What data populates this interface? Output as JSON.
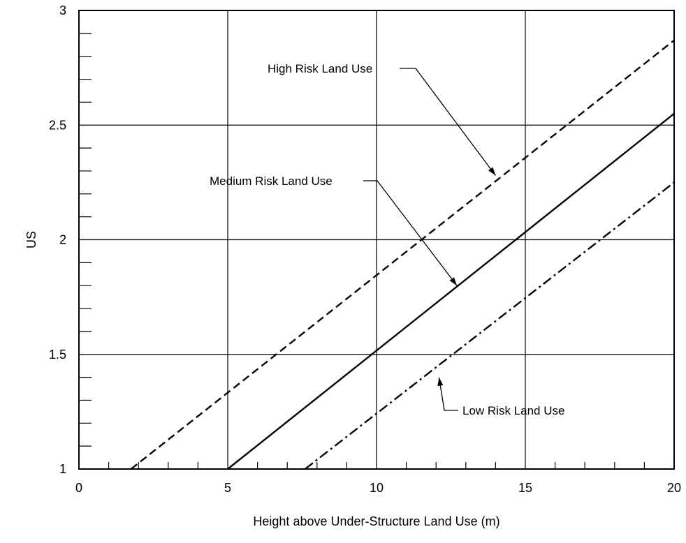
{
  "chart_data": {
    "type": "line",
    "xlabel": "Height above Under-Structure Land Use (m)",
    "ylabel": "US",
    "xlim": [
      0,
      20
    ],
    "ylim": [
      1,
      3
    ],
    "x_ticks": [
      0,
      5,
      10,
      15,
      20
    ],
    "y_ticks": [
      1,
      1.5,
      2,
      2.5,
      3
    ],
    "x_tick_labels": [
      "0",
      "5",
      "10",
      "15",
      "20"
    ],
    "y_tick_labels": [
      "1",
      "1.5",
      "2",
      "2.5",
      "3"
    ],
    "x_minor_step": 1,
    "y_minor_step": 0.1,
    "grid": true,
    "series": [
      {
        "name": "High Risk Land Use",
        "style": "dashed",
        "x": [
          1.75,
          20
        ],
        "y": [
          1.0,
          2.87
        ]
      },
      {
        "name": "Medium Risk Land Use",
        "style": "solid",
        "x": [
          5,
          20
        ],
        "y": [
          1.0,
          2.55
        ]
      },
      {
        "name": "Low Risk Land Use",
        "style": "dashdot",
        "x": [
          7.6,
          20
        ],
        "y": [
          1.0,
          2.25
        ]
      }
    ],
    "annotations": [
      {
        "text": "High Risk Land Use",
        "series": "High Risk Land Use",
        "target": [
          14.0,
          2.28
        ]
      },
      {
        "text": "Medium Risk Land Use",
        "series": "Medium Risk Land Use",
        "target": [
          12.7,
          1.8
        ]
      },
      {
        "text": "Low Risk Land Use",
        "series": "Low Risk Land Use",
        "target": [
          12.1,
          1.4
        ]
      }
    ]
  }
}
